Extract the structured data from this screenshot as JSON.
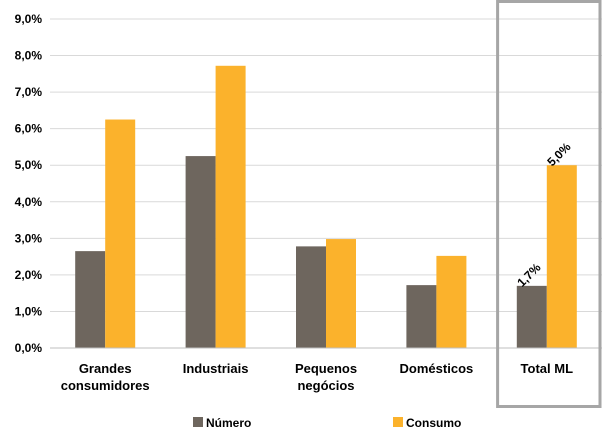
{
  "chart_data": {
    "type": "bar",
    "categories": [
      [
        "Grandes",
        "consumidores"
      ],
      [
        "Industriais"
      ],
      [
        "Pequenos",
        "negócios"
      ],
      [
        "Domésticos"
      ],
      [
        "Total ML"
      ]
    ],
    "series": [
      {
        "name": "Número",
        "color": "#6e665e",
        "values": [
          2.65,
          5.25,
          2.78,
          1.72,
          1.7
        ]
      },
      {
        "name": "Consumo",
        "color": "#fbb22c",
        "values": [
          6.25,
          7.72,
          2.98,
          2.52,
          5.0
        ]
      }
    ],
    "y_ticks": [
      "0,0%",
      "1,0%",
      "2,0%",
      "3,0%",
      "4,0%",
      "5,0%",
      "6,0%",
      "7,0%",
      "8,0%",
      "9,0%"
    ],
    "ylim": [
      0,
      9
    ],
    "data_labels": [
      {
        "series": 0,
        "category": 4,
        "text": "1,7%"
      },
      {
        "series": 1,
        "category": 4,
        "text": "5,0%"
      }
    ],
    "highlight_category": 4,
    "highlight_color": "#a6a6a6",
    "grid": true,
    "legend_position": "bottom"
  }
}
